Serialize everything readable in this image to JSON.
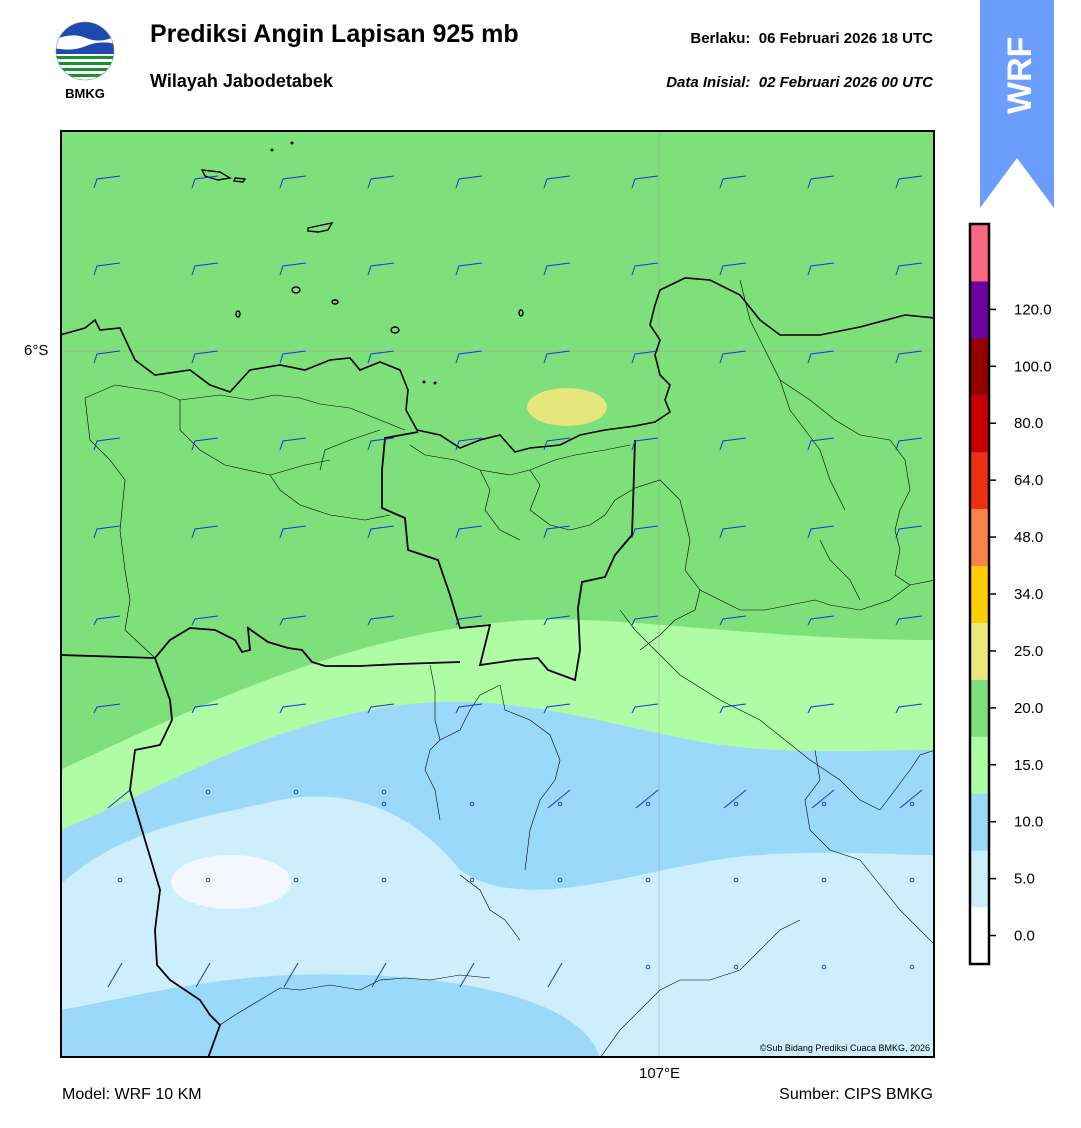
{
  "header": {
    "logo_text": "BMKG",
    "title": "Prediksi Angin Lapisan 925 mb",
    "subtitle": "Wilayah Jabodetabek",
    "valid_label": "Berlaku:",
    "valid_time": "06 Februari 2026 18 UTC",
    "init_label": "Data Inisial:",
    "init_time": "02 Februari 2026 00 UTC"
  },
  "badge": {
    "text": "WRF",
    "color": "#6b9dfc"
  },
  "map": {
    "lat_label": "6°S",
    "lon_label": "107°E",
    "credit": "©Sub Bidang Prediksi Cuaca BMKG, 2026"
  },
  "colorbar": {
    "ticks": [
      "0.0",
      "5.0",
      "10.0",
      "15.0",
      "20.0",
      "25.0",
      "34.0",
      "48.0",
      "64.0",
      "80.0",
      "100.0",
      "120.0"
    ],
    "colors": [
      "#ffffff",
      "#cdeffd",
      "#9bd9fa",
      "#aefca3",
      "#7ee07a",
      "#ede67c",
      "#fdcd06",
      "#f98349",
      "#ea3211",
      "#c70103",
      "#950000",
      "#6b049d",
      "#fb6681"
    ]
  },
  "footer": {
    "model": "Model: WRF 10 KM",
    "source": "Sumber: CIPS BMKG"
  }
}
